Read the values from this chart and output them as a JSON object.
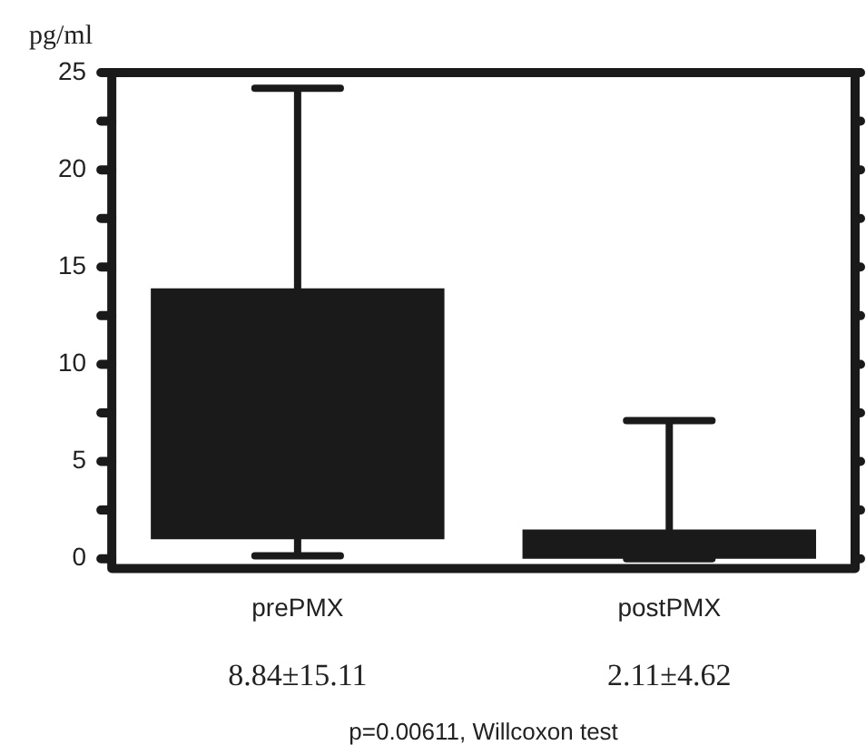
{
  "chart_data": {
    "type": "box",
    "ylabel": "pg/ml",
    "categories": [
      "prePMX",
      "postPMX"
    ],
    "color": "#1a1a1a",
    "boxes": [
      {
        "low": 0.15,
        "q1": 1.0,
        "q3": 13.9,
        "high": 24.2
      },
      {
        "low": 0,
        "q1": 0,
        "q3": 1.5,
        "high": 7.1
      }
    ],
    "ylim": [
      -0.5,
      25
    ],
    "yticks": [
      0,
      {
        "value": 2.5,
        "label": null
      },
      5,
      {
        "value": 7.5,
        "label": null
      },
      10,
      {
        "value": 12.5,
        "label": null
      },
      15,
      {
        "value": 17.5,
        "label": null
      },
      20,
      {
        "value": 22.5,
        "label": null
      },
      25
    ],
    "grid": false,
    "legend": false,
    "annotations": [
      "8.84±15.11",
      "2.11±4.62",
      "p=0.00611, Willcoxon test"
    ]
  }
}
